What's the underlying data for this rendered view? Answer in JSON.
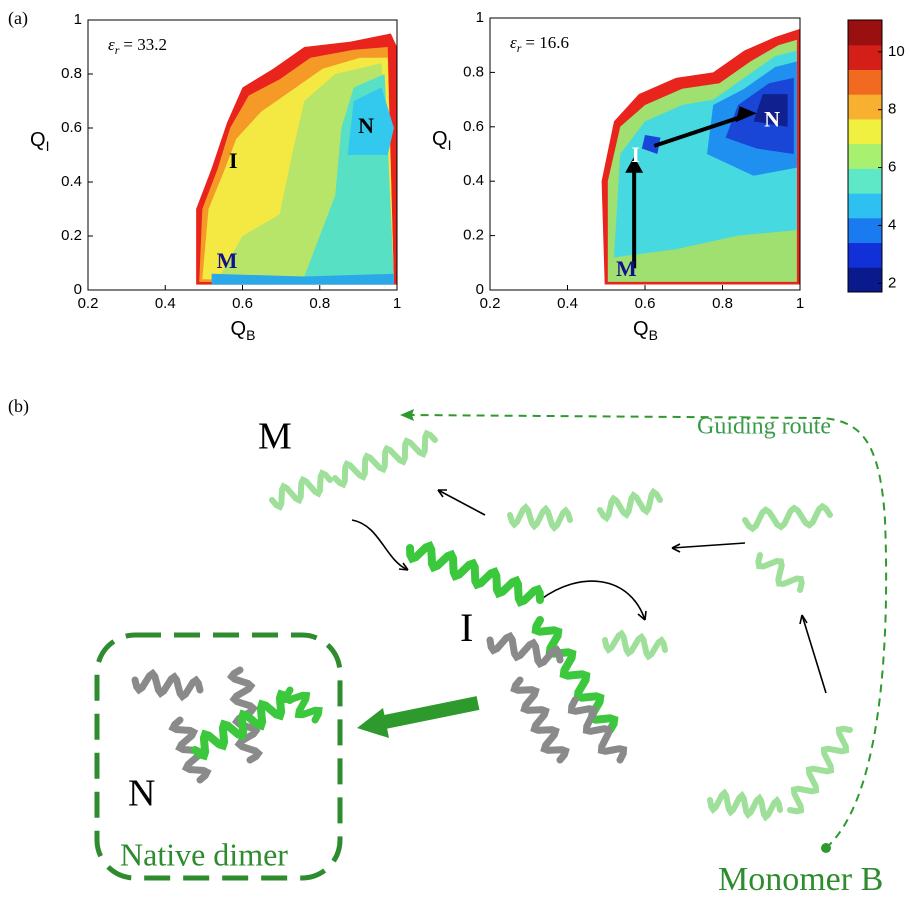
{
  "panel_a": {
    "label": "(a)",
    "plots": [
      {
        "annotation": {
          "symbol": "ε",
          "subscript": "r",
          "text": "= 33.2"
        },
        "x_label": {
          "main": "Q",
          "sub": "B"
        },
        "y_label": {
          "main": "Q",
          "sub": "I"
        },
        "states": {
          "N": "N",
          "I": "I",
          "M": "M"
        }
      },
      {
        "annotation": {
          "symbol": "ε",
          "subscript": "r",
          "text": "= 16.6"
        },
        "x_label": {
          "main": "Q",
          "sub": "B"
        },
        "y_label": {
          "main": "Q",
          "sub": "I"
        },
        "states": {
          "N": "N",
          "I": "I",
          "M": "M"
        }
      }
    ],
    "xlim": [
      0.2,
      1
    ],
    "xticks": [
      0.2,
      0.4,
      0.6,
      0.8,
      1
    ],
    "ylim": [
      0,
      1
    ],
    "yticks": [
      0,
      0.2,
      0.4,
      0.6,
      0.8,
      1
    ],
    "colorbar": {
      "lim": [
        1.7,
        11.1
      ],
      "ticks": [
        2,
        4,
        6,
        8,
        10
      ]
    }
  },
  "panel_b": {
    "label": "(b)",
    "M": "M",
    "I": "I",
    "N": "N",
    "guiding_route": "Guiding route",
    "native_dimer": "Native dimer",
    "monomer_b": "Monomer B"
  }
}
